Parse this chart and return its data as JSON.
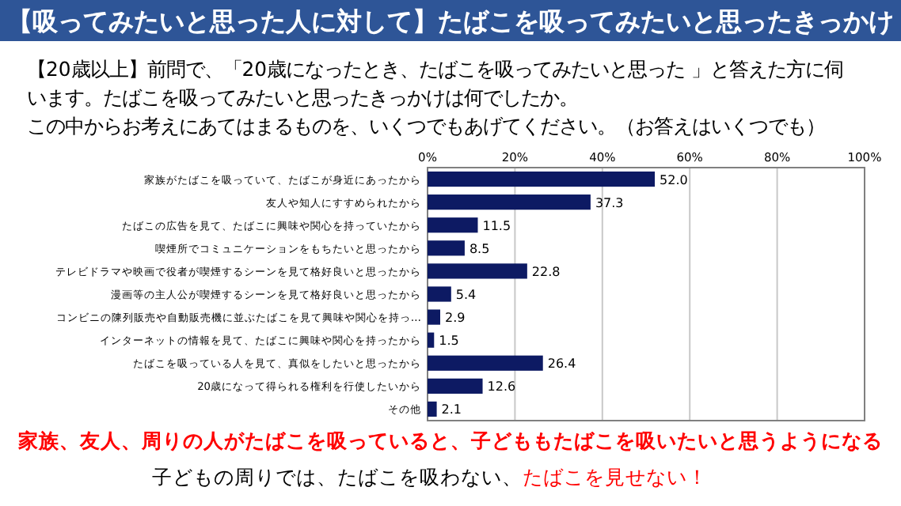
{
  "chart_data": {
    "type": "bar",
    "orientation": "horizontal",
    "title": "【吸ってみたいと思った人に対して】たばこを吸ってみたいと思ったきっかけ",
    "subtitle": "【20歳以上】前問で、「20歳になったとき、たばこを吸ってみたいと思った 」と答えた方に伺います。たばこを吸ってみたいと思ったきっかけは何でしたか。",
    "categories": [
      "家族がたばこを吸っていて、たばこが身近にあったから",
      "友人や知人にすすめられたから",
      "たばこの広告を見て、たばこに興味や関心を持っていたから",
      "喫煙所でコミュニケーションをもちたいと思ったから",
      "テレビドラマや映画で役者が喫煙するシーンを見て格好良いと思ったから",
      "漫画等の主人公が喫煙するシーンを見て格好良いと思ったから",
      "コンビニの陳列販売や自動販売機に並ぶたばこを見て興味や関心を持っ…",
      "インターネットの情報を見て、たばこに興味や関心を持ったから",
      "たばこを吸っている人を見て、真似をしたいと思ったから",
      "20歳になって得られる権利を行使したいから",
      "その他"
    ],
    "values": [
      52.0,
      37.3,
      11.5,
      8.5,
      22.8,
      5.4,
      2.9,
      1.5,
      26.4,
      12.6,
      2.1
    ],
    "value_labels": [
      "52.0",
      "37.3",
      "11.5",
      "8.5",
      "22.8",
      "5.4",
      "2.9",
      "1.5",
      "26.4",
      "12.6",
      "2.1"
    ],
    "color": "#0d1a63",
    "xlim": [
      0,
      100
    ],
    "xticks": [
      {
        "value": 0,
        "label": "0%"
      },
      {
        "value": 20,
        "label": "20%"
      },
      {
        "value": 40,
        "label": "40%"
      },
      {
        "value": 60,
        "label": "60%"
      },
      {
        "value": 80,
        "label": "80%"
      },
      {
        "value": 100,
        "label": "100%"
      }
    ],
    "grid": "x",
    "annotations": [
      "この中からお考えにあてはまるものを、いくつでもあげてください。（お答えはいくつでも）",
      "家族、友人、周りの人がたばこを吸っていると、子どももたばこを吸いたいと思うようになる",
      "子どもの周りでは、たばこを吸わない、",
      "たばこを見せない！"
    ]
  }
}
